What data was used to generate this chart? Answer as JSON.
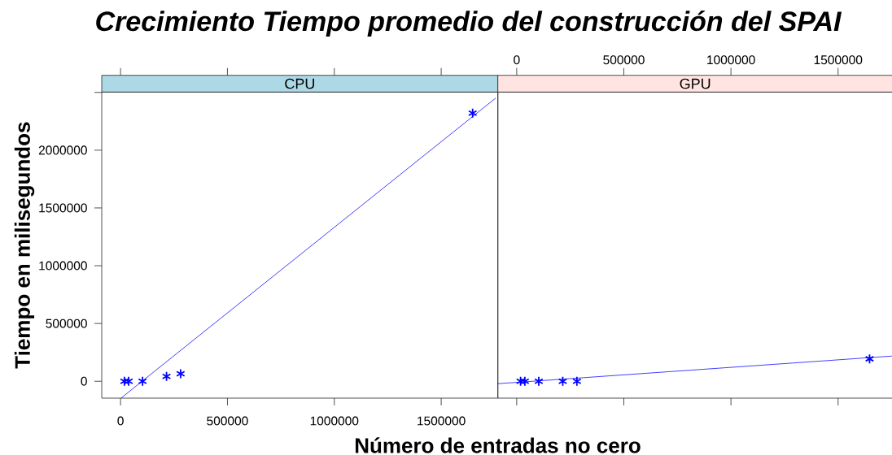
{
  "chart_data": [
    {
      "type": "scatter",
      "title": "Crecimiento Tiempo promedio del construcción del SPAI",
      "subtitle": "CPU",
      "xlabel": "Número de entradas no cero",
      "ylabel": "Tiempo en milisegundos",
      "x": [
        18000,
        38000,
        103000,
        215000,
        281000,
        1647000
      ],
      "series": [
        {
          "color": "#0000ff",
          "marker": "cross",
          "values": [
            0,
            0,
            0,
            42000,
            65000,
            2320000
          ]
        },
        {
          "type": "line",
          "color": "#0000ff",
          "x": [
            3000,
            1755000
          ],
          "values": [
            -145000,
            2451000
          ]
        }
      ],
      "xlim": [
        -88000,
        1765000
      ],
      "ylim": [
        -146000,
        2503000
      ],
      "xticks": [
        0,
        500000,
        1000000,
        1500000
      ],
      "yticks": [
        0,
        500000,
        1000000,
        1500000,
        2000000,
        {
          "value": 2500000,
          "label": null
        }
      ],
      "line_style": "solid"
    },
    {
      "type": "scatter",
      "subtitle": "GPU",
      "x": [
        18000,
        38000,
        103000,
        215000,
        281000,
        1647000
      ],
      "series": [
        {
          "color": "#0000ff",
          "marker": "cross",
          "values": [
            0,
            0,
            0,
            0,
            0,
            194000
          ]
        },
        {
          "type": "line",
          "color": "#0000ff",
          "x": [
            -88000,
            1751000
          ],
          "values": [
            -21000,
            218000
          ]
        }
      ],
      "xlim": [
        -88000,
        1754000
      ],
      "ylim": [
        -146000,
        2503000
      ],
      "xticks": [
        0,
        500000,
        1000000,
        1500000
      ],
      "tick_labels": "x",
      "line_style": "solid"
    }
  ]
}
